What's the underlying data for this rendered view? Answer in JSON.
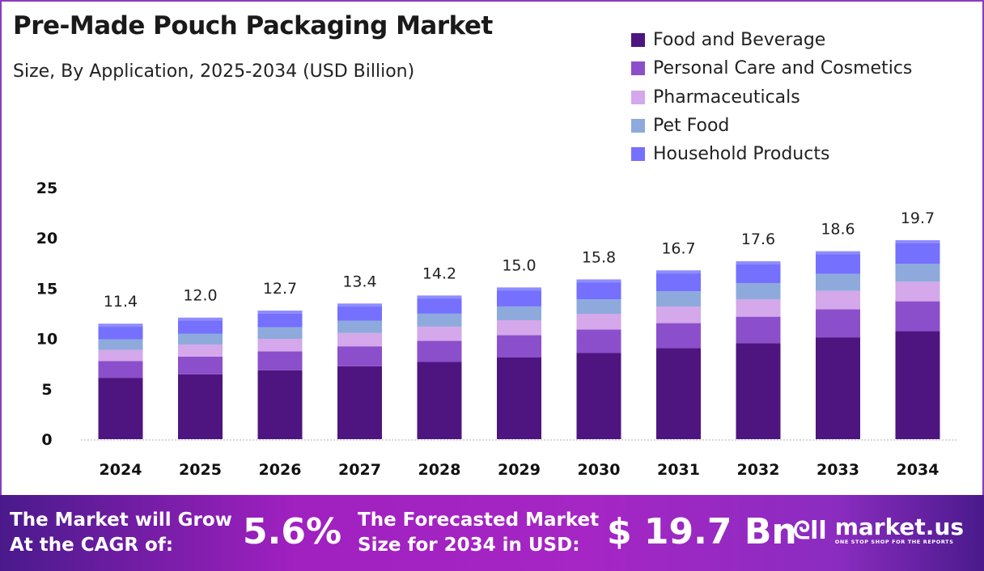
{
  "chart_data": {
    "type": "bar",
    "stacked": true,
    "title": "Pre-Made Pouch Packaging Market",
    "subtitle": "Size, By Application, 2025-2034 (USD Billion)",
    "categories": [
      "2024",
      "2025",
      "2026",
      "2027",
      "2028",
      "2029",
      "2030",
      "2031",
      "2032",
      "2033",
      "2034"
    ],
    "totals": [
      "11.4",
      "12.0",
      "12.7",
      "13.4",
      "14.2",
      "15.0",
      "15.8",
      "16.7",
      "17.6",
      "18.6",
      "19.7"
    ],
    "series": [
      {
        "name": "Food and Beverage",
        "color": "#4e1580",
        "values": [
          6.1,
          6.45,
          6.85,
          7.25,
          7.68,
          8.12,
          8.56,
          9.05,
          9.55,
          10.12,
          10.75
        ]
      },
      {
        "name": "Personal Care and Cosmetics",
        "color": "#8b4fcb",
        "values": [
          1.66,
          1.76,
          1.87,
          1.98,
          2.1,
          2.22,
          2.34,
          2.48,
          2.62,
          2.78,
          2.95
        ]
      },
      {
        "name": "Pharmaceuticals",
        "color": "#d4a8ea",
        "values": [
          1.12,
          1.18,
          1.25,
          1.32,
          1.4,
          1.48,
          1.56,
          1.65,
          1.74,
          1.84,
          1.95
        ]
      },
      {
        "name": "Pet Food",
        "color": "#8eaadc",
        "values": [
          1.05,
          1.1,
          1.16,
          1.22,
          1.29,
          1.37,
          1.44,
          1.52,
          1.6,
          1.69,
          1.77
        ]
      },
      {
        "name": "Household Products",
        "color": "#7570fe",
        "values": [
          1.47,
          1.51,
          1.57,
          1.63,
          1.73,
          1.81,
          1.9,
          2.0,
          2.09,
          2.17,
          2.28
        ]
      }
    ],
    "yticks": [
      "0",
      "5",
      "10",
      "15",
      "20",
      "25"
    ],
    "ylim": [
      0,
      25
    ],
    "grid": false,
    "legend": "top-right"
  },
  "banner": {
    "cagr_label": "The Market will Grow At the CAGR of:",
    "cagr_value": "5.6%",
    "forecast_label": "The Forecasted Market Size for 2034 in USD:",
    "forecast_value": "$ 19.7 Bn",
    "logo_name": "market.us",
    "logo_tag": "ONE STOP SHOP FOR THE REPORTS"
  }
}
